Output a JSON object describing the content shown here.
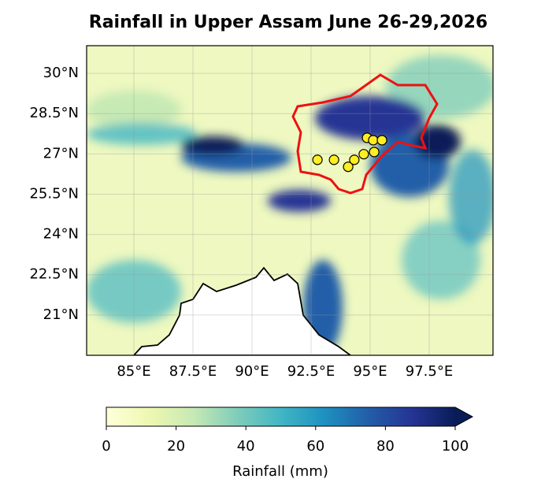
{
  "chart_data": {
    "type": "map",
    "title": "Rainfall in Upper Assam June 26-29,2026",
    "xlim": [
      83,
      100.2
    ],
    "ylim": [
      19.5,
      31.03
    ],
    "xticks": [
      {
        "value": 85,
        "label": "85°E"
      },
      {
        "value": 87.5,
        "label": "87.5°E"
      },
      {
        "value": 90,
        "label": "90°E"
      },
      {
        "value": 92.5,
        "label": "92.5°E"
      },
      {
        "value": 95,
        "label": "95°E"
      },
      {
        "value": 97.5,
        "label": "97.5°E"
      }
    ],
    "yticks": [
      {
        "value": 21,
        "label": "21°N"
      },
      {
        "value": 22.5,
        "label": "22.5°N"
      },
      {
        "value": 24,
        "label": "24°N"
      },
      {
        "value": 25.5,
        "label": "25.5°N"
      },
      {
        "value": 27,
        "label": "27°N"
      },
      {
        "value": 28.5,
        "label": "28.5°N"
      },
      {
        "value": 30,
        "label": "30°N"
      }
    ],
    "grid": true,
    "stations": {
      "color": "#ffee22",
      "lon": [
        92.77,
        93.47,
        94.07,
        94.33,
        94.73,
        94.87,
        95.17,
        95.13,
        95.5
      ],
      "lat": [
        26.78,
        26.78,
        26.52,
        26.78,
        26.99,
        27.6,
        27.07,
        27.51,
        27.51
      ]
    },
    "colorbar": {
      "label": "Rainfall (mm)",
      "clim": [
        0,
        100
      ],
      "ticks": [
        0,
        20,
        40,
        60,
        80,
        100
      ],
      "colors": [
        "#ffffd9",
        "#edf8b1",
        "#c7e9b4",
        "#7fcdbb",
        "#41b6c4",
        "#1d91c0",
        "#225ea8",
        "#253494",
        "#081d58"
      ]
    }
  }
}
